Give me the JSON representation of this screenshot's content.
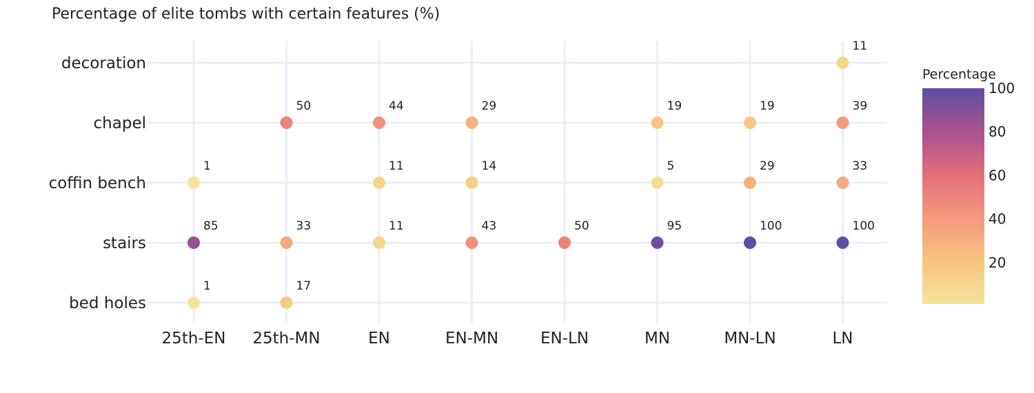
{
  "chart_data": {
    "type": "scatter",
    "title": "Percentage of elite tombs with certain features (%)",
    "x_categories": [
      "25th-EN",
      "25th-MN",
      "EN",
      "EN-MN",
      "EN-LN",
      "MN",
      "MN-LN",
      "LN"
    ],
    "y_categories": [
      "bed holes",
      "stairs",
      "coffin bench",
      "chapel",
      "decoration"
    ],
    "points": [
      {
        "x": "LN",
        "y": "decoration",
        "value": 11
      },
      {
        "x": "25th-MN",
        "y": "chapel",
        "value": 50
      },
      {
        "x": "EN",
        "y": "chapel",
        "value": 44
      },
      {
        "x": "EN-MN",
        "y": "chapel",
        "value": 29
      },
      {
        "x": "MN",
        "y": "chapel",
        "value": 19
      },
      {
        "x": "MN-LN",
        "y": "chapel",
        "value": 19
      },
      {
        "x": "LN",
        "y": "chapel",
        "value": 39
      },
      {
        "x": "25th-EN",
        "y": "coffin bench",
        "value": 1
      },
      {
        "x": "EN",
        "y": "coffin bench",
        "value": 11
      },
      {
        "x": "EN-MN",
        "y": "coffin bench",
        "value": 14
      },
      {
        "x": "MN",
        "y": "coffin bench",
        "value": 5
      },
      {
        "x": "MN-LN",
        "y": "coffin bench",
        "value": 29
      },
      {
        "x": "LN",
        "y": "coffin bench",
        "value": 33
      },
      {
        "x": "25th-EN",
        "y": "stairs",
        "value": 85
      },
      {
        "x": "25th-MN",
        "y": "stairs",
        "value": 33
      },
      {
        "x": "EN",
        "y": "stairs",
        "value": 11
      },
      {
        "x": "EN-MN",
        "y": "stairs",
        "value": 43
      },
      {
        "x": "EN-LN",
        "y": "stairs",
        "value": 50
      },
      {
        "x": "MN",
        "y": "stairs",
        "value": 95
      },
      {
        "x": "MN-LN",
        "y": "stairs",
        "value": 100
      },
      {
        "x": "LN",
        "y": "stairs",
        "value": 100
      },
      {
        "x": "25th-EN",
        "y": "bed holes",
        "value": 1
      },
      {
        "x": "25th-MN",
        "y": "bed holes",
        "value": 17
      }
    ],
    "colorbar": {
      "title": "Percentage",
      "ticks": [
        20,
        40,
        60,
        80,
        100
      ],
      "range": [
        1,
        100
      ],
      "colorscale": [
        [
          0.0,
          "#f2e599"
        ],
        [
          0.2,
          "#f8c47f"
        ],
        [
          0.4,
          "#f3987c"
        ],
        [
          0.6,
          "#e0707a"
        ],
        [
          0.8,
          "#a8528e"
        ],
        [
          1.0,
          "#5d4fa3"
        ]
      ]
    },
    "grid": true,
    "legend": "right"
  }
}
